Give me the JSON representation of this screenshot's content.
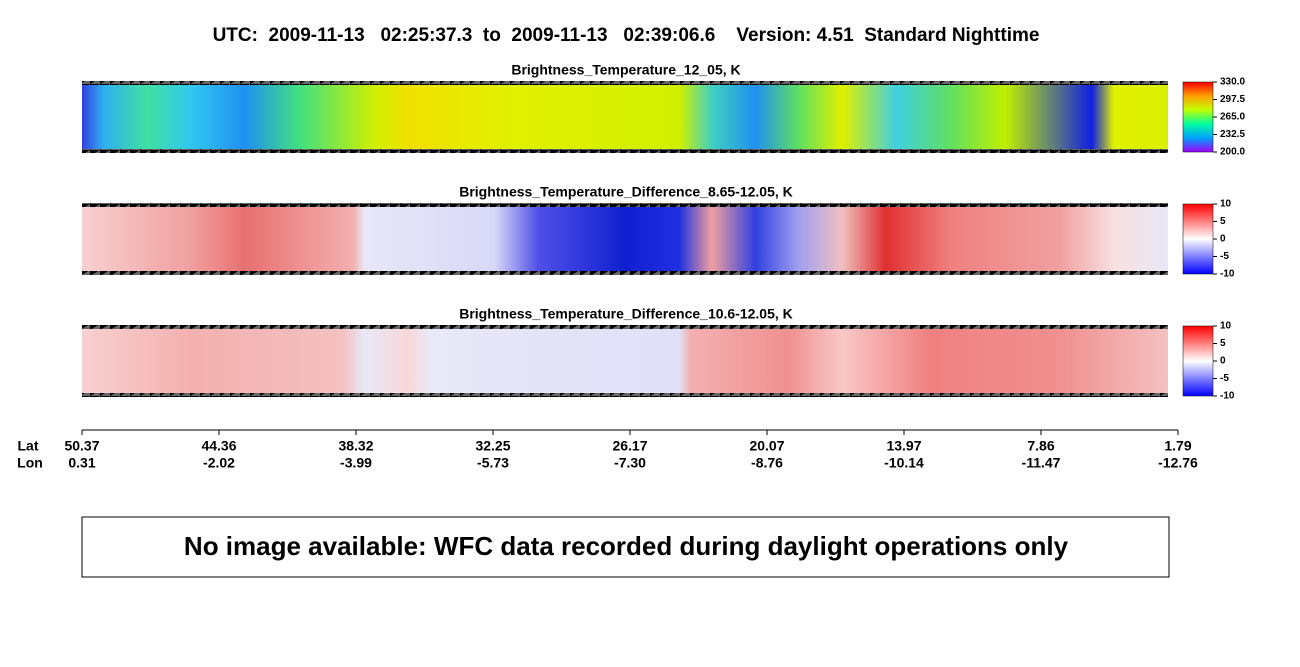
{
  "title": "UTC:  2009-11-13   02:25:37.3  to  2009-11-13   02:39:06.6    Version: 4.51  Standard Nighttime",
  "panels": [
    {
      "title": "Brightness_Temperature_12_05, K",
      "colorbar": [
        "330.0",
        "297.5",
        "265.0",
        "232.5",
        "200.0"
      ]
    },
    {
      "title": "Brightness_Temperature_Difference_8.65-12.05, K",
      "colorbar": [
        "10",
        "5",
        "0",
        "-5",
        "-10"
      ]
    },
    {
      "title": "Brightness_Temperature_Difference_10.6-12.05, K",
      "colorbar": [
        "10",
        "5",
        "0",
        "-5",
        "-10"
      ]
    }
  ],
  "axis": {
    "lat_label": "Lat",
    "lon_label": "Lon",
    "lat": [
      "50.37",
      "44.36",
      "38.32",
      "32.25",
      "26.17",
      "20.07",
      "13.97",
      "7.86",
      "1.79"
    ],
    "lon": [
      "0.31",
      "-2.02",
      "-3.99",
      "-5.73",
      "-7.30",
      "-8.76",
      "-10.14",
      "-11.47",
      "-12.76"
    ]
  },
  "message": "No image available: WFC data recorded during daylight operations only"
}
